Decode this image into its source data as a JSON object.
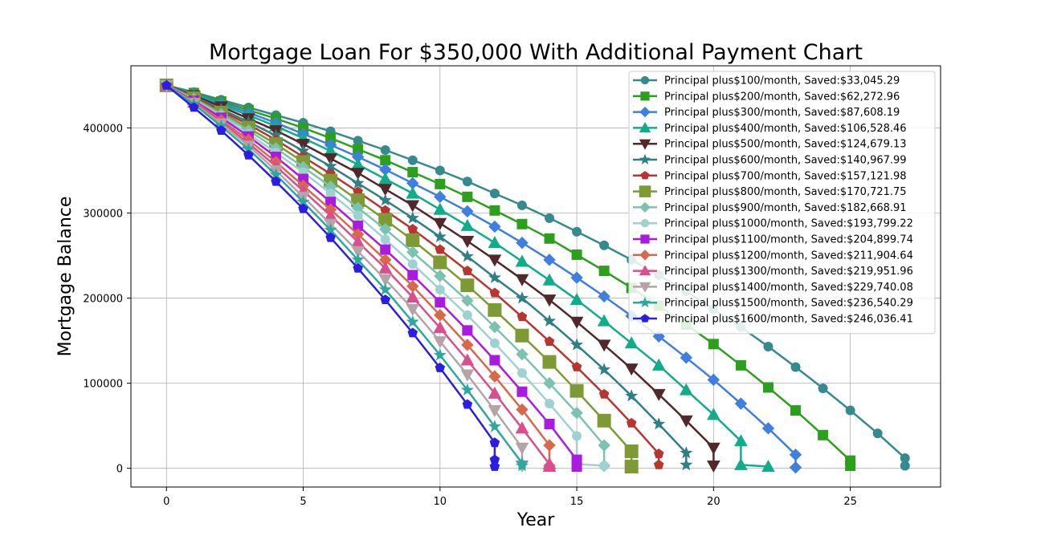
{
  "chart_data": {
    "type": "line",
    "title": "Mortgage Loan For $350,000 With Additional Payment Chart",
    "xlabel": "Year",
    "ylabel": "Mortgage Balance",
    "xlim": [
      -1.3,
      28.3
    ],
    "ylim": [
      -22000,
      473000
    ],
    "xticks": [
      0,
      5,
      10,
      15,
      20,
      25
    ],
    "yticks": [
      0,
      100000,
      200000,
      300000,
      400000
    ],
    "grid": true,
    "legend_position": "top-right",
    "series": [
      {
        "name": "Principal plus$100/month, Saved:$33,045.29",
        "color": "#348a8e",
        "marker": "circle",
        "x": [
          0,
          1,
          2,
          3,
          4,
          5,
          6,
          7,
          8,
          9,
          10,
          11,
          12,
          13,
          14,
          15,
          16,
          17,
          18,
          19,
          20,
          21,
          22,
          23,
          24,
          25,
          26,
          27,
          27
        ],
        "y": [
          450000,
          442000,
          433000,
          424000,
          415000,
          406000,
          396000,
          385000,
          374000,
          362000,
          350000,
          337000,
          323000,
          309000,
          294000,
          278000,
          262000,
          245000,
          227000,
          208000,
          187000,
          166000,
          143000,
          119000,
          94000,
          68000,
          41000,
          12000,
          3000
        ]
      },
      {
        "name": "Principal plus$200/month, Saved:$62,272.96",
        "color": "#2ca01c",
        "marker": "square",
        "x": [
          0,
          1,
          2,
          3,
          4,
          5,
          6,
          7,
          8,
          9,
          10,
          11,
          12,
          13,
          14,
          15,
          16,
          17,
          18,
          19,
          20,
          21,
          22,
          23,
          24,
          25,
          25
        ],
        "y": [
          450000,
          441000,
          431000,
          421000,
          411000,
          400000,
          388000,
          375000,
          362000,
          348000,
          334000,
          319000,
          303000,
          287000,
          270000,
          251000,
          232000,
          212000,
          191000,
          169000,
          146000,
          121000,
          95000,
          68000,
          39000,
          9000,
          3000
        ]
      },
      {
        "name": "Principal plus$300/month, Saved:$87,608.19",
        "color": "#3e7fe0",
        "marker": "diamond",
        "x": [
          0,
          1,
          2,
          3,
          4,
          5,
          6,
          7,
          8,
          9,
          10,
          11,
          12,
          13,
          14,
          15,
          16,
          17,
          18,
          19,
          20,
          21,
          22,
          23,
          23
        ],
        "y": [
          450000,
          440000,
          429000,
          418000,
          406000,
          393000,
          380000,
          366000,
          351000,
          335000,
          319000,
          302000,
          284000,
          265000,
          245000,
          224000,
          202000,
          179000,
          155000,
          130000,
          104000,
          76000,
          47000,
          16000,
          1000
        ]
      },
      {
        "name": "Principal plus$400/month, Saved:$106,528.46",
        "color": "#11ad8a",
        "marker": "triangle-up",
        "x": [
          0,
          1,
          2,
          3,
          4,
          5,
          6,
          7,
          8,
          9,
          10,
          11,
          12,
          13,
          14,
          15,
          16,
          17,
          18,
          19,
          20,
          21,
          21,
          22
        ],
        "y": [
          450000,
          439000,
          427000,
          415000,
          402000,
          388000,
          373000,
          357000,
          340000,
          323000,
          304000,
          285000,
          265000,
          243000,
          221000,
          198000,
          173000,
          147000,
          121000,
          92000,
          63000,
          32000,
          4000,
          2000
        ]
      },
      {
        "name": "Principal plus$500/month, Saved:$124,679.13",
        "color": "#52282a",
        "marker": "triangle-down",
        "x": [
          0,
          1,
          2,
          3,
          4,
          5,
          6,
          7,
          8,
          9,
          10,
          11,
          12,
          13,
          14,
          15,
          16,
          17,
          18,
          19,
          20,
          20
        ],
        "y": [
          450000,
          438000,
          425000,
          411000,
          397000,
          381000,
          364000,
          347000,
          328000,
          309000,
          288000,
          267000,
          245000,
          222000,
          198000,
          172000,
          145000,
          117000,
          87000,
          56000,
          24000,
          3000
        ]
      },
      {
        "name": "Principal plus$600/month, Saved:$140,967.99",
        "color": "#2f7f87",
        "marker": "star",
        "x": [
          0,
          1,
          2,
          3,
          4,
          5,
          6,
          7,
          8,
          9,
          10,
          11,
          12,
          13,
          14,
          15,
          16,
          17,
          18,
          19,
          19
        ],
        "y": [
          450000,
          437000,
          422000,
          407000,
          391000,
          373000,
          355000,
          335000,
          315000,
          294000,
          272000,
          249000,
          224000,
          200000,
          173000,
          145000,
          116000,
          85000,
          52000,
          18000,
          4000
        ]
      },
      {
        "name": "Principal plus$700/month, Saved:$157,121.98",
        "color": "#b93530",
        "marker": "pentagon",
        "x": [
          0,
          1,
          2,
          3,
          4,
          5,
          6,
          7,
          8,
          9,
          10,
          11,
          12,
          13,
          14,
          15,
          16,
          17,
          18,
          18
        ],
        "y": [
          450000,
          436000,
          420000,
          404000,
          386000,
          366000,
          346000,
          325000,
          303000,
          281000,
          257000,
          232000,
          206000,
          178000,
          149000,
          119000,
          87000,
          53000,
          17000,
          4000
        ]
      },
      {
        "name": "Principal plus$800/month, Saved:$170,721.75",
        "color": "#7e9a34",
        "marker": "big-square",
        "x": [
          0,
          1,
          2,
          3,
          4,
          5,
          6,
          7,
          8,
          9,
          10,
          11,
          12,
          13,
          14,
          15,
          16,
          17,
          17
        ],
        "y": [
          450000,
          435000,
          418000,
          400000,
          381000,
          360000,
          338000,
          315000,
          292000,
          268000,
          242000,
          215000,
          186000,
          156000,
          125000,
          91000,
          56000,
          20000,
          2000
        ]
      },
      {
        "name": "Principal plus$900/month, Saved:$182,668.91",
        "color": "#7cc2b0",
        "marker": "diamond",
        "x": [
          0,
          1,
          2,
          3,
          4,
          5,
          6,
          7,
          8,
          9,
          10,
          11,
          12,
          13,
          14,
          15,
          16,
          16
        ],
        "y": [
          450000,
          434000,
          416000,
          397000,
          376000,
          354000,
          331000,
          306000,
          281000,
          254000,
          226000,
          197000,
          166000,
          134000,
          100000,
          65000,
          27000,
          3000
        ]
      },
      {
        "name": "Principal plus$1000/month, Saved:$193,799.22",
        "color": "#9ed2d0",
        "marker": "circle",
        "x": [
          0,
          1,
          2,
          3,
          4,
          5,
          6,
          7,
          8,
          9,
          10,
          11,
          12,
          13,
          14,
          15,
          15,
          16
        ],
        "y": [
          450000,
          433000,
          414000,
          393000,
          371000,
          348000,
          323000,
          297000,
          269000,
          240000,
          210000,
          180000,
          147000,
          112000,
          76000,
          38000,
          5000,
          3000
        ]
      },
      {
        "name": "Principal plus$1100/month, Saved:$204,899.74",
        "color": "#aa1be0",
        "marker": "square",
        "x": [
          0,
          1,
          2,
          3,
          4,
          5,
          6,
          7,
          8,
          9,
          10,
          11,
          12,
          13,
          14,
          15,
          15
        ],
        "y": [
          450000,
          432000,
          412000,
          390000,
          366000,
          340000,
          313000,
          285000,
          257000,
          227000,
          195000,
          162000,
          127000,
          90000,
          52000,
          10000,
          2000
        ]
      },
      {
        "name": "Principal plus$1200/month, Saved:$211,904.64",
        "color": "#d9684a",
        "marker": "diamond",
        "x": [
          0,
          1,
          2,
          3,
          4,
          5,
          6,
          7,
          8,
          9,
          10,
          11,
          12,
          13,
          14,
          14
        ],
        "y": [
          450000,
          431000,
          409000,
          386000,
          360000,
          332000,
          304000,
          275000,
          245000,
          214000,
          180000,
          145000,
          108000,
          69000,
          27000,
          3000
        ]
      },
      {
        "name": "Principal plus$1300/month, Saved:$219,951.96",
        "color": "#d94f8d",
        "marker": "triangle-up",
        "x": [
          0,
          1,
          2,
          3,
          4,
          5,
          6,
          7,
          8,
          9,
          10,
          11,
          12,
          13,
          14,
          14
        ],
        "y": [
          450000,
          430000,
          407000,
          382000,
          355000,
          326000,
          297000,
          266000,
          235000,
          201000,
          165000,
          127000,
          88000,
          47000,
          5000,
          2000
        ]
      },
      {
        "name": "Principal plus$1400/month, Saved:$229,740.08",
        "color": "#b5a4a6",
        "marker": "triangle-down",
        "x": [
          0,
          1,
          2,
          3,
          4,
          5,
          6,
          7,
          8,
          9,
          10,
          11,
          12,
          13,
          13
        ],
        "y": [
          450000,
          429000,
          405000,
          379000,
          350000,
          319000,
          287000,
          255000,
          222000,
          187000,
          149000,
          110000,
          68000,
          24000,
          3000
        ]
      },
      {
        "name": "Principal plus$1500/month, Saved:$236,540.29",
        "color": "#2da8a0",
        "marker": "star",
        "x": [
          0,
          1,
          2,
          3,
          4,
          5,
          6,
          7,
          8,
          9,
          10,
          11,
          12,
          13,
          13
        ],
        "y": [
          450000,
          428000,
          402000,
          375000,
          345000,
          313000,
          280000,
          245000,
          210000,
          172000,
          133000,
          92000,
          49000,
          6000,
          3000
        ]
      },
      {
        "name": "Principal plus$1600/month, Saved:$246,036.41",
        "color": "#2b1ee0",
        "marker": "pentagon",
        "x": [
          0,
          1,
          2,
          3,
          4,
          5,
          6,
          7,
          8,
          9,
          10,
          11,
          12,
          12,
          12
        ],
        "y": [
          450000,
          424000,
          397000,
          368000,
          337000,
          305000,
          271000,
          235000,
          198000,
          159000,
          118000,
          75000,
          30000,
          10000,
          2000
        ]
      }
    ]
  }
}
